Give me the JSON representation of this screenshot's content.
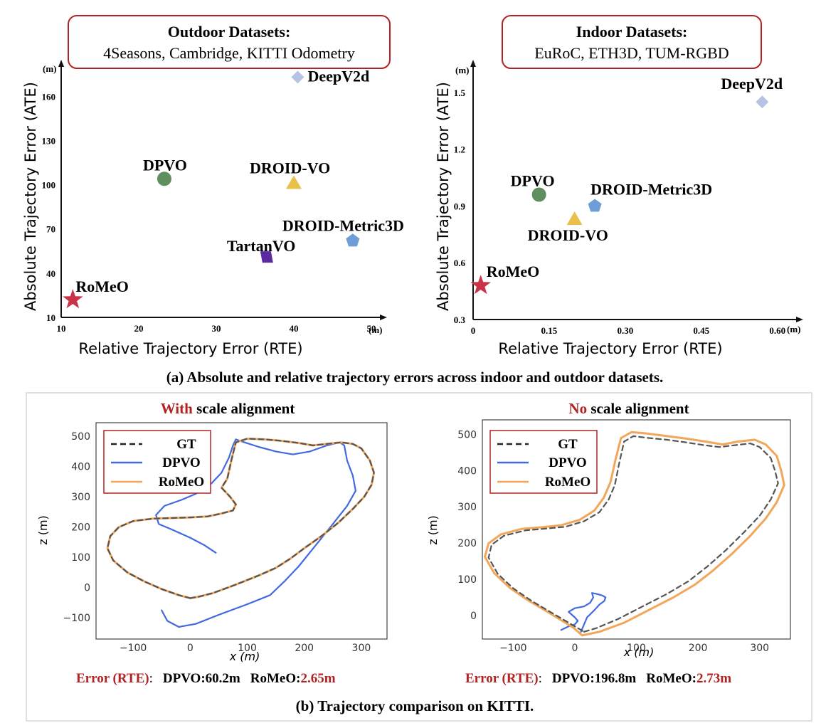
{
  "colors": {
    "accent_red": "#b22222",
    "gt": "#555555",
    "dpvo_line": "#4169e1",
    "romeo_line": "#f2a65a",
    "dpvo_marker": "#5f8f5f",
    "droidvo_marker": "#e8c04a",
    "metric3d_marker": "#6f9ed6",
    "deepv2d_marker": "#b8c3e3",
    "tartanvo_marker": "#5b2aa0",
    "romeo_marker": "#c8334a"
  },
  "captions": {
    "a": "(a) Absolute and relative trajectory errors across indoor and outdoor datasets.",
    "b": "(b) Trajectory comparison on KITTI."
  },
  "panel_a_outdoor": {
    "box_title": "Outdoor Datasets:",
    "box_subtitle": "4Seasons, Cambridge, KITTI Odometry",
    "xlabel": "Relative Trajectory Error (RTE)",
    "ylabel": "Absolute  Trajectory Error (ATE)",
    "x_unit": "(m)",
    "y_unit": "(m)"
  },
  "panel_a_indoor": {
    "box_title": "Indoor Datasets:",
    "box_subtitle": "EuRoC, ETH3D, TUM-RGBD",
    "xlabel": "Relative Trajectory Error (RTE)",
    "ylabel": "Absolute  Trajectory Error (ATE)",
    "x_unit": "(m)",
    "y_unit": "(m)"
  },
  "panel_b_left": {
    "title_red": "With",
    "title_rest": " scale alignment",
    "error_label": "Error (RTE)",
    "error_sep": ":",
    "dpvo_error": "DPVO:60.2m",
    "romeo_prefix": "RoMeO:",
    "romeo_error": "2.65m",
    "xlabel": "x (m)",
    "ylabel": "z (m)",
    "legend": [
      "GT",
      "DPVO",
      "RoMeO"
    ]
  },
  "panel_b_right": {
    "title_red": "No",
    "title_rest": " scale alignment",
    "error_label": "Error (RTE)",
    "error_sep": ":",
    "dpvo_error": "DPVO:196.8m",
    "romeo_prefix": "RoMeO:",
    "romeo_error": "2.73m",
    "xlabel": "x (m)",
    "ylabel": "z (m)",
    "legend": [
      "GT",
      "DPVO",
      "RoMeO"
    ]
  },
  "chart_data": [
    {
      "type": "scatter",
      "title": "Outdoor Datasets: 4Seasons, Cambridge, KITTI Odometry",
      "xlabel": "Relative Trajectory Error (RTE)",
      "ylabel": "Absolute  Trajectory Error (ATE)",
      "xlim": [
        10,
        50
      ],
      "ylim": [
        10,
        178
      ],
      "xticks": [
        10,
        20,
        30,
        40,
        50
      ],
      "yticks": [
        10,
        40,
        70,
        100,
        130,
        160
      ],
      "points": [
        {
          "label": "DeepV2d",
          "x": 40.5,
          "y": 173,
          "marker": "diamond",
          "color": "#b8c3e3"
        },
        {
          "label": "DPVO",
          "x": 23.3,
          "y": 104,
          "marker": "circle",
          "color": "#5f8f5f"
        },
        {
          "label": "DROID-VO",
          "x": 40,
          "y": 101,
          "marker": "triangle",
          "color": "#e8c04a"
        },
        {
          "label": "DROID-Metric3D",
          "x": 47.6,
          "y": 62,
          "marker": "pentagon",
          "color": "#6f9ed6"
        },
        {
          "label": "TartanVO",
          "x": 36.5,
          "y": 51,
          "marker": "parallelogram",
          "color": "#5b2aa0"
        },
        {
          "label": "RoMeO",
          "x": 11.5,
          "y": 22,
          "marker": "star",
          "color": "#c8334a"
        }
      ]
    },
    {
      "type": "scatter",
      "title": "Indoor Datasets: EuRoC, ETH3D, TUM-RGBD",
      "xlabel": "Relative Trajectory Error (RTE)",
      "ylabel": "Absolute  Trajectory Error (ATE)",
      "xlim": [
        0,
        0.62
      ],
      "ylim": [
        0.3,
        1.62
      ],
      "xticks": [
        0,
        0.15,
        0.3,
        0.45,
        0.6
      ],
      "xtick_labels": [
        "0",
        "0.15",
        "0.30",
        "0.45",
        "0.60"
      ],
      "yticks": [
        0.3,
        0.6,
        0.9,
        1.2,
        1.5
      ],
      "points": [
        {
          "label": "DeepV2d",
          "x": 0.57,
          "y": 1.45,
          "marker": "diamond",
          "color": "#b8c3e3"
        },
        {
          "label": "DPVO",
          "x": 0.13,
          "y": 0.96,
          "marker": "circle",
          "color": "#5f8f5f"
        },
        {
          "label": "DROID-Metric3D",
          "x": 0.24,
          "y": 0.9,
          "marker": "pentagon",
          "color": "#6f9ed6"
        },
        {
          "label": "DROID-VO",
          "x": 0.2,
          "y": 0.83,
          "marker": "triangle",
          "color": "#e8c04a"
        },
        {
          "label": "RoMeO",
          "x": 0.015,
          "y": 0.48,
          "marker": "star",
          "color": "#c8334a"
        }
      ]
    },
    {
      "type": "line",
      "title": "With scale alignment",
      "xlabel": "x (m)",
      "ylabel": "z (m)",
      "xlim": [
        -165,
        345
      ],
      "ylim": [
        -170,
        545
      ],
      "xticks": [
        -100,
        0,
        100,
        200,
        300
      ],
      "yticks": [
        -100,
        0,
        100,
        200,
        300,
        400,
        500
      ],
      "series": [
        {
          "name": "GT",
          "style": "dashed",
          "color": "#555555",
          "x": [
            0,
            15,
            40,
            80,
            120,
            150,
            175,
            200,
            230,
            260,
            285,
            305,
            318,
            322,
            315,
            300,
            285,
            265,
            240,
            215,
            190,
            160,
            130,
            100,
            80,
            72,
            65,
            55,
            70,
            80,
            75,
            55,
            30,
            0,
            -30,
            -65,
            -100,
            -125,
            -140,
            -145,
            -135,
            -110,
            -80,
            -50,
            -20,
            0
          ],
          "y": [
            -35,
            -30,
            -18,
            10,
            40,
            65,
            95,
            130,
            170,
            215,
            260,
            300,
            340,
            380,
            420,
            460,
            475,
            480,
            475,
            470,
            478,
            485,
            490,
            492,
            480,
            420,
            360,
            330,
            300,
            275,
            255,
            245,
            235,
            232,
            230,
            228,
            220,
            200,
            170,
            130,
            90,
            50,
            20,
            -5,
            -25,
            -35
          ]
        },
        {
          "name": "RoMeO",
          "style": "solid",
          "color": "#f2a65a",
          "x": [
            0,
            15,
            40,
            80,
            120,
            150,
            175,
            200,
            230,
            260,
            285,
            305,
            318,
            322,
            315,
            300,
            285,
            265,
            240,
            215,
            190,
            160,
            130,
            100,
            80,
            72,
            65,
            55,
            70,
            80,
            75,
            55,
            30,
            0,
            -30,
            -65,
            -100,
            -125,
            -140,
            -145,
            -135,
            -110,
            -80,
            -50,
            -20,
            0
          ],
          "y": [
            -35,
            -30,
            -18,
            10,
            40,
            65,
            95,
            130,
            170,
            215,
            260,
            300,
            340,
            380,
            420,
            460,
            475,
            480,
            475,
            470,
            478,
            485,
            490,
            492,
            480,
            420,
            360,
            330,
            300,
            275,
            255,
            245,
            235,
            232,
            230,
            228,
            220,
            200,
            170,
            130,
            90,
            50,
            20,
            -5,
            -25,
            -35
          ]
        },
        {
          "name": "DPVO",
          "style": "solid",
          "color": "#4169e1",
          "x": [
            -50,
            -40,
            -20,
            10,
            50,
            100,
            140,
            165,
            190,
            220,
            250,
            275,
            290,
            285,
            275,
            270,
            262,
            240,
            210,
            180,
            150,
            120,
            95,
            80,
            75,
            68,
            55,
            35,
            10,
            -15,
            -45,
            -60,
            -55,
            -30,
            0,
            25,
            45
          ],
          "y": [
            -75,
            -110,
            -130,
            -120,
            -90,
            -55,
            -25,
            20,
            70,
            140,
            210,
            270,
            320,
            370,
            420,
            470,
            480,
            470,
            450,
            440,
            450,
            465,
            480,
            490,
            470,
            430,
            380,
            340,
            310,
            290,
            270,
            240,
            210,
            190,
            165,
            140,
            115
          ]
        }
      ]
    },
    {
      "type": "line",
      "title": "No scale alignment",
      "xlabel": "x (m)",
      "ylabel": "z (m)",
      "xlim": [
        -150,
        350
      ],
      "ylim": [
        -65,
        540
      ],
      "xticks": [
        -100,
        0,
        100,
        200,
        300
      ],
      "yticks": [
        0,
        100,
        200,
        300,
        400,
        500
      ],
      "series": [
        {
          "name": "GT",
          "style": "dashed",
          "color": "#555555",
          "x": [
            15,
            35,
            70,
            110,
            150,
            185,
            215,
            245,
            275,
            300,
            318,
            330,
            325,
            318,
            300,
            285,
            260,
            235,
            210,
            180,
            150,
            120,
            95,
            80,
            72,
            65,
            55,
            40,
            15,
            -15,
            -45,
            -80,
            -115,
            -135,
            -140,
            -125,
            -100,
            -70,
            -40,
            -15,
            0,
            15
          ],
          "y": [
            -45,
            -35,
            -10,
            25,
            60,
            95,
            135,
            180,
            230,
            275,
            320,
            365,
            400,
            435,
            465,
            475,
            470,
            465,
            470,
            478,
            485,
            490,
            495,
            480,
            420,
            360,
            320,
            285,
            260,
            245,
            240,
            235,
            220,
            195,
            160,
            115,
            75,
            40,
            10,
            -15,
            -30,
            -45
          ]
        },
        {
          "name": "RoMeO",
          "style": "solid",
          "color": "#f2a65a",
          "x": [
            12,
            40,
            80,
            120,
            160,
            195,
            225,
            255,
            285,
            310,
            328,
            340,
            335,
            328,
            310,
            292,
            265,
            240,
            212,
            182,
            150,
            118,
            92,
            75,
            66,
            58,
            47,
            32,
            8,
            -22,
            -52,
            -86,
            -120,
            -140,
            -146,
            -131,
            -106,
            -76,
            -46,
            -18,
            -2,
            12
          ],
          "y": [
            -55,
            -45,
            -20,
            15,
            50,
            85,
            125,
            170,
            220,
            268,
            313,
            360,
            400,
            440,
            472,
            485,
            480,
            472,
            480,
            488,
            495,
            502,
            506,
            490,
            430,
            368,
            325,
            290,
            264,
            249,
            244,
            239,
            224,
            199,
            162,
            117,
            77,
            42,
            12,
            -17,
            -34,
            -55
          ]
        },
        {
          "name": "DPVO",
          "style": "solid",
          "color": "#4169e1",
          "x": [
            -22,
            -10,
            0,
            5,
            0,
            -10,
            0,
            15,
            25,
            30,
            28,
            35,
            45,
            50,
            48,
            40,
            32,
            20,
            10
          ],
          "y": [
            -40,
            -30,
            -25,
            -15,
            -5,
            10,
            20,
            25,
            35,
            50,
            62,
            60,
            55,
            50,
            40,
            30,
            15,
            -5,
            -45
          ]
        }
      ]
    }
  ]
}
